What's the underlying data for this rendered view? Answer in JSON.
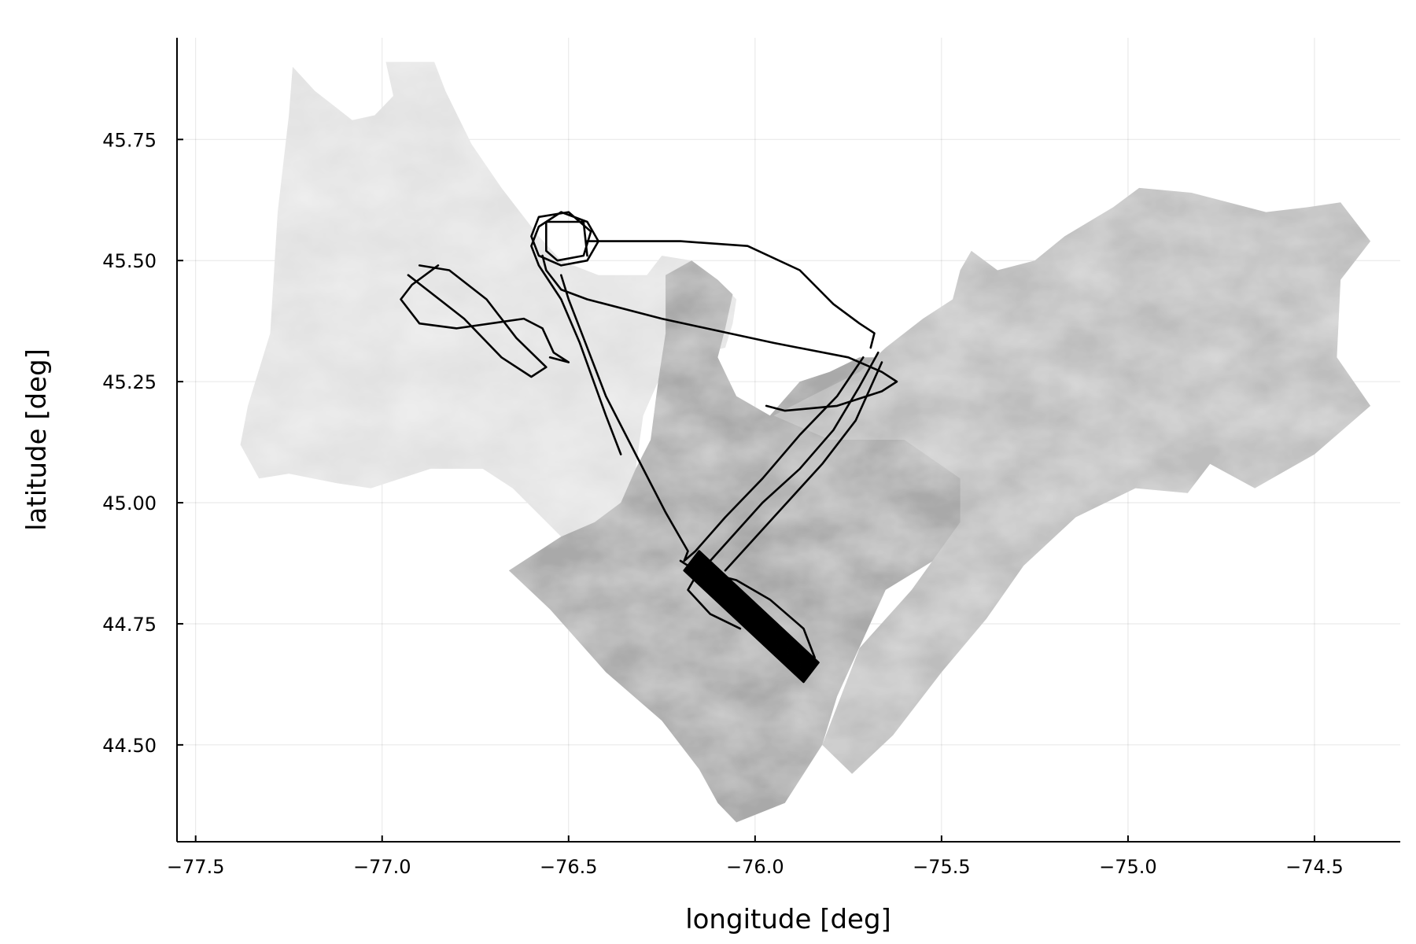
{
  "chart_data": {
    "type": "line",
    "title": "",
    "xlabel": "longitude [deg]",
    "ylabel": "latitude [deg]",
    "xlim": [
      -77.55,
      -74.27
    ],
    "ylim": [
      44.3,
      45.96
    ],
    "grid": true,
    "legend": "none",
    "x_ticks": [
      {
        "value": -77.5,
        "label": "−77.5"
      },
      {
        "value": -77.0,
        "label": "−77.0"
      },
      {
        "value": -76.5,
        "label": "−76.5"
      },
      {
        "value": -76.0,
        "label": "−76.0"
      },
      {
        "value": -75.5,
        "label": "−75.5"
      },
      {
        "value": -75.0,
        "label": "−75.0"
      },
      {
        "value": -74.5,
        "label": "−74.5"
      }
    ],
    "y_ticks": [
      {
        "value": 44.5,
        "label": "44.50"
      },
      {
        "value": 44.75,
        "label": "44.75"
      },
      {
        "value": 45.0,
        "label": "45.00"
      },
      {
        "value": 45.25,
        "label": "45.25"
      },
      {
        "value": 45.5,
        "label": "45.50"
      },
      {
        "value": 45.75,
        "label": "45.75"
      }
    ],
    "background_regions": [
      {
        "name": "west-map",
        "color": "#e2e2e2",
        "polygon": [
          [
            -77.24,
            45.9
          ],
          [
            -77.18,
            45.85
          ],
          [
            -77.08,
            45.79
          ],
          [
            -77.02,
            45.8
          ],
          [
            -76.97,
            45.84
          ],
          [
            -76.99,
            45.91
          ],
          [
            -76.86,
            45.91
          ],
          [
            -76.83,
            45.85
          ],
          [
            -76.76,
            45.74
          ],
          [
            -76.68,
            45.65
          ],
          [
            -76.58,
            45.55
          ],
          [
            -76.52,
            45.5
          ],
          [
            -76.42,
            45.47
          ],
          [
            -76.29,
            45.47
          ],
          [
            -76.25,
            45.51
          ],
          [
            -76.17,
            45.5
          ],
          [
            -76.1,
            45.46
          ],
          [
            -76.05,
            45.42
          ],
          [
            -76.06,
            45.37
          ],
          [
            -76.08,
            45.32
          ],
          [
            -76.2,
            45.3
          ],
          [
            -76.26,
            45.25
          ],
          [
            -76.3,
            45.18
          ],
          [
            -76.32,
            45.07
          ],
          [
            -76.36,
            45.0
          ],
          [
            -76.43,
            44.96
          ],
          [
            -76.52,
            44.93
          ],
          [
            -76.65,
            45.03
          ],
          [
            -76.73,
            45.07
          ],
          [
            -76.87,
            45.07
          ],
          [
            -77.03,
            45.03
          ],
          [
            -77.12,
            45.04
          ],
          [
            -77.25,
            45.06
          ],
          [
            -77.33,
            45.05
          ],
          [
            -77.38,
            45.12
          ],
          [
            -77.36,
            45.2
          ],
          [
            -77.3,
            45.35
          ],
          [
            -77.28,
            45.6
          ],
          [
            -77.25,
            45.8
          ]
        ]
      },
      {
        "name": "south-map",
        "color": "#a9a9a9",
        "polygon": [
          [
            -76.66,
            44.86
          ],
          [
            -76.52,
            44.93
          ],
          [
            -76.43,
            44.96
          ],
          [
            -76.36,
            45.0
          ],
          [
            -76.32,
            45.07
          ],
          [
            -76.28,
            45.13
          ],
          [
            -76.26,
            45.25
          ],
          [
            -76.24,
            45.35
          ],
          [
            -76.24,
            45.47
          ],
          [
            -76.17,
            45.5
          ],
          [
            -76.1,
            45.46
          ],
          [
            -76.06,
            45.43
          ],
          [
            -76.08,
            45.36
          ],
          [
            -76.1,
            45.3
          ],
          [
            -76.05,
            45.22
          ],
          [
            -75.96,
            45.18
          ],
          [
            -75.88,
            45.25
          ],
          [
            -75.8,
            45.27
          ],
          [
            -75.72,
            45.3
          ],
          [
            -75.67,
            45.3
          ],
          [
            -75.62,
            45.3
          ],
          [
            -75.48,
            45.28
          ],
          [
            -75.38,
            45.0
          ],
          [
            -75.48,
            44.9
          ],
          [
            -75.65,
            44.82
          ],
          [
            -75.78,
            44.6
          ],
          [
            -75.82,
            44.5
          ],
          [
            -75.92,
            44.38
          ],
          [
            -76.05,
            44.34
          ],
          [
            -76.1,
            44.38
          ],
          [
            -76.15,
            44.45
          ],
          [
            -76.25,
            44.55
          ],
          [
            -76.4,
            44.65
          ],
          [
            -76.55,
            44.78
          ]
        ]
      },
      {
        "name": "east-map",
        "color": "#bdbdbd",
        "polygon": [
          [
            -75.95,
            45.18
          ],
          [
            -75.85,
            45.22
          ],
          [
            -75.72,
            45.27
          ],
          [
            -75.65,
            45.32
          ],
          [
            -75.55,
            45.38
          ],
          [
            -75.47,
            45.42
          ],
          [
            -75.45,
            45.48
          ],
          [
            -75.42,
            45.52
          ],
          [
            -75.35,
            45.48
          ],
          [
            -75.25,
            45.5
          ],
          [
            -75.17,
            45.55
          ],
          [
            -75.04,
            45.61
          ],
          [
            -74.97,
            45.65
          ],
          [
            -74.83,
            45.64
          ],
          [
            -74.63,
            45.6
          ],
          [
            -74.52,
            45.61
          ],
          [
            -74.43,
            45.62
          ],
          [
            -74.35,
            45.54
          ],
          [
            -74.43,
            45.46
          ],
          [
            -74.44,
            45.3
          ],
          [
            -74.35,
            45.2
          ],
          [
            -74.5,
            45.1
          ],
          [
            -74.66,
            45.03
          ],
          [
            -74.78,
            45.08
          ],
          [
            -74.84,
            45.02
          ],
          [
            -74.98,
            45.03
          ],
          [
            -75.14,
            44.97
          ],
          [
            -75.28,
            44.87
          ],
          [
            -75.38,
            44.76
          ],
          [
            -75.5,
            44.65
          ],
          [
            -75.63,
            44.52
          ],
          [
            -75.74,
            44.44
          ],
          [
            -75.82,
            44.5
          ],
          [
            -75.72,
            44.7
          ],
          [
            -75.58,
            44.82
          ],
          [
            -75.45,
            44.96
          ],
          [
            -75.45,
            45.05
          ],
          [
            -75.6,
            45.13
          ],
          [
            -75.8,
            45.13
          ]
        ]
      }
    ],
    "series": [
      {
        "values": [
          [
            -76.36,
            45.1
          ],
          [
            -76.4,
            45.18
          ],
          [
            -76.47,
            45.33
          ],
          [
            -76.52,
            45.42
          ],
          [
            -76.58,
            45.49
          ],
          [
            -76.6,
            45.53
          ],
          [
            -76.58,
            45.57
          ],
          [
            -76.52,
            45.6
          ],
          [
            -76.45,
            45.58
          ],
          [
            -76.42,
            45.54
          ],
          [
            -76.45,
            45.5
          ],
          [
            -76.52,
            45.49
          ],
          [
            -76.58,
            45.51
          ],
          [
            -76.6,
            45.55
          ],
          [
            -76.58,
            45.59
          ],
          [
            -76.5,
            45.6
          ],
          [
            -76.44,
            45.56
          ],
          [
            -76.46,
            45.51
          ],
          [
            -76.53,
            45.5
          ],
          [
            -76.56,
            45.52
          ],
          [
            -76.56,
            45.58
          ],
          [
            -76.46,
            45.58
          ],
          [
            -76.45,
            45.51
          ]
        ]
      },
      {
        "values": [
          [
            -76.57,
            45.51
          ],
          [
            -76.56,
            45.48
          ],
          [
            -76.52,
            45.44
          ],
          [
            -76.45,
            45.42
          ],
          [
            -76.25,
            45.38
          ],
          [
            -75.95,
            45.33
          ],
          [
            -75.75,
            45.3
          ],
          [
            -75.66,
            45.27
          ],
          [
            -75.62,
            45.25
          ],
          [
            -75.66,
            45.23
          ],
          [
            -75.78,
            45.2
          ],
          [
            -75.92,
            45.19
          ],
          [
            -75.97,
            45.2
          ]
        ]
      },
      {
        "values": [
          [
            -76.45,
            45.54
          ],
          [
            -76.35,
            45.54
          ],
          [
            -76.2,
            45.54
          ],
          [
            -76.02,
            45.53
          ],
          [
            -75.88,
            45.48
          ],
          [
            -75.79,
            45.41
          ],
          [
            -75.72,
            45.37
          ],
          [
            -75.68,
            45.35
          ],
          [
            -75.69,
            45.32
          ]
        ]
      },
      {
        "values": [
          [
            -76.52,
            45.47
          ],
          [
            -76.5,
            45.42
          ],
          [
            -76.46,
            45.34
          ],
          [
            -76.4,
            45.22
          ],
          [
            -76.32,
            45.1
          ],
          [
            -76.24,
            44.98
          ],
          [
            -76.18,
            44.9
          ],
          [
            -76.19,
            44.88
          ],
          [
            -76.16,
            44.9
          ],
          [
            -76.08,
            44.97
          ],
          [
            -75.98,
            45.05
          ],
          [
            -75.88,
            45.14
          ],
          [
            -75.78,
            45.22
          ],
          [
            -75.71,
            45.3
          ]
        ]
      },
      {
        "values": [
          [
            -76.85,
            45.49
          ],
          [
            -76.92,
            45.45
          ],
          [
            -76.95,
            45.42
          ],
          [
            -76.9,
            45.37
          ],
          [
            -76.8,
            45.36
          ],
          [
            -76.62,
            45.38
          ],
          [
            -76.57,
            45.36
          ],
          [
            -76.54,
            45.31
          ],
          [
            -76.5,
            45.29
          ],
          [
            -76.55,
            45.3
          ]
        ]
      },
      {
        "values": [
          [
            -76.9,
            45.49
          ],
          [
            -76.82,
            45.48
          ],
          [
            -76.72,
            45.42
          ],
          [
            -76.64,
            45.34
          ],
          [
            -76.56,
            45.28
          ],
          [
            -76.6,
            45.26
          ],
          [
            -76.68,
            45.3
          ],
          [
            -76.78,
            45.38
          ],
          [
            -76.88,
            45.44
          ],
          [
            -76.93,
            45.47
          ]
        ]
      },
      {
        "values": [
          [
            -76.12,
            44.88
          ],
          [
            -75.98,
            45.0
          ],
          [
            -75.88,
            45.07
          ],
          [
            -75.79,
            45.15
          ],
          [
            -75.72,
            45.24
          ],
          [
            -75.67,
            45.31
          ]
        ]
      },
      {
        "values": [
          [
            -76.08,
            44.86
          ],
          [
            -75.95,
            44.97
          ],
          [
            -75.82,
            45.08
          ],
          [
            -75.73,
            45.17
          ],
          [
            -75.66,
            45.29
          ]
        ]
      },
      {
        "values": [
          [
            -76.2,
            44.88
          ],
          [
            -76.12,
            44.84
          ],
          [
            -76.08,
            44.8
          ],
          [
            -76.05,
            44.76
          ],
          [
            -75.98,
            44.72
          ],
          [
            -75.92,
            44.68
          ],
          [
            -75.88,
            44.65
          ],
          [
            -75.84,
            44.68
          ],
          [
            -75.87,
            44.74
          ],
          [
            -75.96,
            44.8
          ],
          [
            -76.05,
            44.84
          ],
          [
            -76.15,
            44.86
          ],
          [
            -76.18,
            44.82
          ],
          [
            -76.12,
            44.77
          ],
          [
            -76.04,
            44.74
          ]
        ]
      },
      {
        "values": [
          [
            -76.19,
            44.86
          ],
          [
            -75.87,
            44.63
          ],
          [
            -75.83,
            44.67
          ],
          [
            -76.15,
            44.9
          ],
          [
            -76.19,
            44.86
          ]
        ]
      }
    ]
  }
}
